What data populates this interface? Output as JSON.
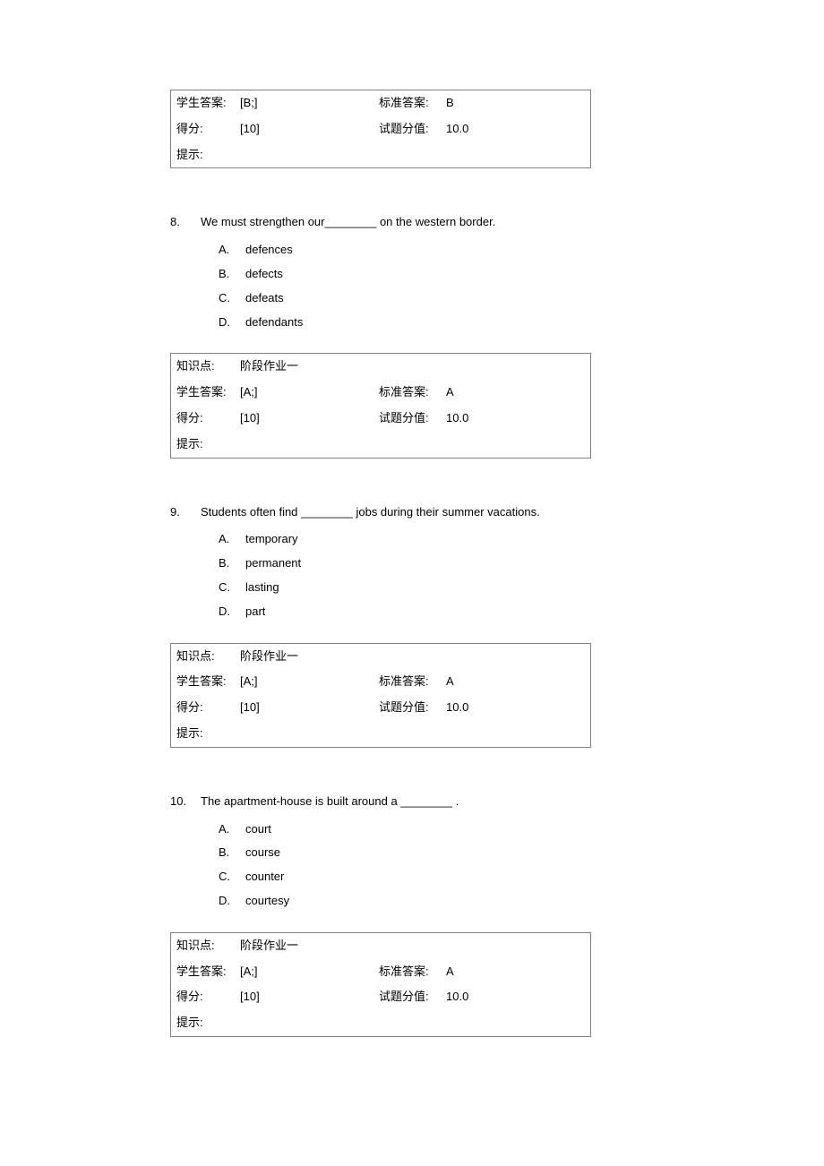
{
  "labels": {
    "student_answer": "学生答案:",
    "standard_answer": "标准答案:",
    "score": "得分:",
    "question_value": "试题分值:",
    "hint": "提示:",
    "knowledge_point": "知识点:"
  },
  "q7_box": {
    "student_answer": "[B;]",
    "standard_answer": "B",
    "score": "[10]",
    "question_value": "10.0",
    "hint": ""
  },
  "q8": {
    "number": "8.",
    "stem": "We must strengthen our________ on the western border.",
    "options": {
      "A": {
        "letter": "A.",
        "text": "defences"
      },
      "B": {
        "letter": "B.",
        "text": "defects"
      },
      "C": {
        "letter": "C.",
        "text": "defeats"
      },
      "D": {
        "letter": "D.",
        "text": "defendants"
      }
    },
    "box": {
      "knowledge_point": "阶段作业一",
      "student_answer": "[A;]",
      "standard_answer": "A",
      "score": "[10]",
      "question_value": "10.0",
      "hint": ""
    }
  },
  "q9": {
    "number": "9.",
    "stem": "Students often find ________ jobs during their summer vacations.",
    "options": {
      "A": {
        "letter": "A.",
        "text": "temporary"
      },
      "B": {
        "letter": "B.",
        "text": "permanent"
      },
      "C": {
        "letter": "C.",
        "text": "lasting"
      },
      "D": {
        "letter": "D.",
        "text": "part"
      }
    },
    "box": {
      "knowledge_point": "阶段作业一",
      "student_answer": "[A;]",
      "standard_answer": "A",
      "score": "[10]",
      "question_value": "10.0",
      "hint": ""
    }
  },
  "q10": {
    "number": "10.",
    "stem": "The apartment-house is built around a ________ .",
    "options": {
      "A": {
        "letter": "A.",
        "text": "court"
      },
      "B": {
        "letter": "B.",
        "text": "course"
      },
      "C": {
        "letter": "C.",
        "text": "counter"
      },
      "D": {
        "letter": "D.",
        "text": "courtesy"
      }
    },
    "box": {
      "knowledge_point": "阶段作业一",
      "student_answer": "[A;]",
      "standard_answer": "A",
      "score": "[10]",
      "question_value": "10.0",
      "hint": ""
    }
  }
}
